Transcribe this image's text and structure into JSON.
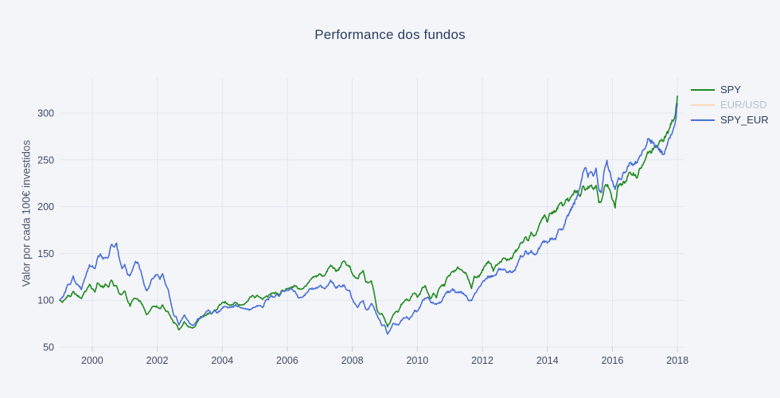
{
  "figure": {
    "background_color": "#f4f5f9",
    "grid_color": "#e3e7f0",
    "tick_mark_color": "#c9cedb",
    "title_color": "#2a3f5f",
    "tick_label_color": "#3d4c68",
    "axis_title_color": "#4a5872",
    "hidden_legend_text_color": "#b9c2cf"
  },
  "chart_data": {
    "type": "line",
    "title": "Performance dos fundos",
    "xlabel": "",
    "ylabel": "Valor por cada 100€ investidos",
    "x_start": "1999-01",
    "x_step_months": 1,
    "xticks": [
      2000,
      2002,
      2004,
      2006,
      2008,
      2010,
      2012,
      2014,
      2016,
      2018
    ],
    "yticks": [
      50,
      100,
      150,
      200,
      250,
      300
    ],
    "xlim": [
      1999.0,
      2018.3
    ],
    "ylim": [
      50,
      337
    ],
    "grid": true,
    "legend_position": "right-outside-top",
    "series": [
      {
        "name": "SPY",
        "color": "#228B22",
        "hidden": false,
        "values": [
          100,
          98,
          101,
          105,
          104,
          109,
          106,
          104,
          102,
          108,
          111,
          117,
          112,
          109,
          119,
          115,
          114,
          117,
          114,
          122,
          116,
          115,
          107,
          106,
          110,
          100,
          94,
          101,
          102,
          100,
          98,
          92,
          85,
          87,
          93,
          94,
          93,
          91,
          95,
          89,
          88,
          82,
          76,
          75,
          68,
          72,
          77,
          73,
          71,
          70,
          72,
          78,
          82,
          83,
          84,
          86,
          85,
          89,
          90,
          95,
          97,
          98,
          96,
          95,
          96,
          98,
          95,
          95,
          96,
          98,
          102,
          105,
          103,
          105,
          103,
          101,
          104,
          104,
          108,
          107,
          108,
          106,
          110,
          110,
          113,
          113,
          114,
          116,
          112,
          112,
          113,
          116,
          119,
          123,
          125,
          126,
          128,
          126,
          127,
          133,
          137,
          135,
          131,
          133,
          138,
          143,
          137,
          136,
          128,
          124,
          123,
          129,
          131,
          120,
          119,
          121,
          110,
          91,
          85,
          86,
          79,
          72,
          77,
          84,
          88,
          88,
          95,
          98,
          101,
          99,
          105,
          108,
          104,
          107,
          114,
          115,
          107,
          101,
          108,
          103,
          112,
          116,
          116,
          124,
          127,
          131,
          131,
          135,
          133,
          131,
          128,
          121,
          113,
          125,
          125,
          126,
          132,
          137,
          141,
          140,
          132,
          137,
          139,
          142,
          145,
          143,
          144,
          145,
          152,
          154,
          160,
          163,
          167,
          164,
          172,
          167,
          172,
          180,
          186,
          191,
          184,
          193,
          194,
          195,
          200,
          204,
          201,
          209,
          206,
          211,
          216,
          216,
          210,
          222,
          219,
          221,
          223,
          219,
          224,
          204,
          205,
          222,
          223,
          219,
          207,
          200,
          222,
          223,
          226,
          227,
          235,
          235,
          235,
          231,
          239,
          244,
          248,
          258,
          258,
          261,
          264,
          266,
          271,
          272,
          277,
          283,
          292,
          295,
          318
        ]
      },
      {
        "name": "EUR/USD",
        "color": "#fdbf85",
        "hidden": true,
        "values": []
      },
      {
        "name": "SPY_EUR",
        "color": "#4a6fd8",
        "hidden": false,
        "values": [
          100,
          103,
          109,
          117,
          118,
          125,
          117,
          116,
          112,
          121,
          130,
          137,
          136,
          133,
          146,
          149,
          145,
          145,
          145,
          160,
          156,
          160,
          145,
          133,
          138,
          128,
          126,
          134,
          142,
          139,
          131,
          119,
          110,
          114,
          123,
          125,
          128,
          123,
          129,
          117,
          112,
          98,
          84,
          82,
          74,
          79,
          84,
          80,
          75,
          73,
          75,
          80,
          81,
          84,
          87,
          90,
          85,
          89,
          87,
          88,
          92,
          93,
          92,
          93,
          93,
          95,
          93,
          92,
          91,
          91,
          90,
          91,
          93,
          94,
          94,
          92,
          100,
          101,
          105,
          103,
          106,
          104,
          110,
          110,
          110,
          112,
          111,
          109,
          103,
          103,
          104,
          107,
          111,
          113,
          112,
          113,
          116,
          113,
          113,
          115,
          121,
          118,
          113,
          115,
          115,
          116,
          111,
          110,
          101,
          96,
          92,
          98,
          99,
          90,
          90,
          97,
          92,
          85,
          79,
          73,
          73,
          64,
          68,
          75,
          74,
          74,
          78,
          81,
          82,
          80,
          83,
          89,
          88,
          93,
          100,
          102,
          103,
          98,
          97,
          96,
          97,
          99,
          105,
          109,
          109,
          112,
          109,
          108,
          109,
          107,
          105,
          99,
          100,
          106,
          110,
          114,
          119,
          122,
          125,
          125,
          126,
          127,
          133,
          133,
          133,
          130,
          131,
          130,
          132,
          139,
          147,
          146,
          152,
          149,
          153,
          149,
          150,
          156,
          161,
          163,
          161,
          165,
          166,
          166,
          174,
          176,
          177,
          188,
          193,
          199,
          204,
          211,
          219,
          234,
          242,
          233,
          239,
          233,
          240,
          218,
          216,
          238,
          248,
          237,
          226,
          218,
          230,
          229,
          235,
          238,
          245,
          246,
          246,
          248,
          252,
          258,
          262,
          272,
          270,
          268,
          265,
          262,
          258,
          257,
          263,
          273,
          280,
          286,
          310
        ]
      }
    ]
  }
}
